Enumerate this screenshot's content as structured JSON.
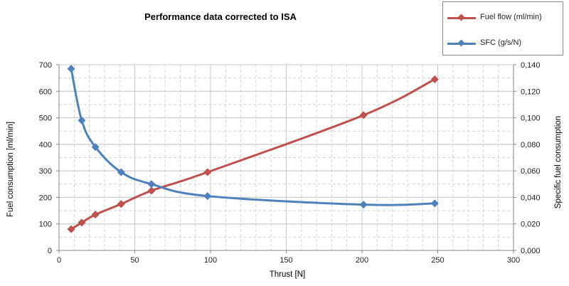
{
  "chart_data": {
    "type": "line",
    "title": "Performance data corrected to ISA",
    "xlabel": "Thrust [N]",
    "ylabel_left": "Fuel consumption [ml/min]",
    "ylabel_right": "Specific fuel consumption",
    "xlim": [
      0,
      300
    ],
    "ylim_left": [
      0,
      700
    ],
    "ylim_right": [
      0,
      0.14
    ],
    "x_ticks": [
      "0",
      "50",
      "100",
      "150",
      "200",
      "250",
      "300"
    ],
    "y_left_ticks": [
      "0",
      "100",
      "200",
      "300",
      "400",
      "500",
      "600",
      "700"
    ],
    "y_right_ticks": [
      "0,000",
      "0,020",
      "0,040",
      "0,060",
      "0,080",
      "0,100",
      "0,120",
      "0,140"
    ],
    "grid": true,
    "legend_position": "top-right",
    "series": [
      {
        "name": "Fuel flow (ml/min)",
        "axis": "left",
        "color": "#c0504d",
        "x": [
          8,
          15,
          24,
          41,
          61,
          98,
          201,
          248
        ],
        "y": [
          80,
          105,
          135,
          175,
          225,
          295,
          510,
          645
        ]
      },
      {
        "name": "SFC (g/s/N)",
        "axis": "right",
        "color": "#4f81bd",
        "x": [
          8,
          15,
          24,
          41,
          61,
          98,
          201,
          248
        ],
        "y": [
          0.137,
          0.098,
          0.078,
          0.059,
          0.05,
          0.041,
          0.0345,
          0.0355
        ]
      }
    ]
  }
}
